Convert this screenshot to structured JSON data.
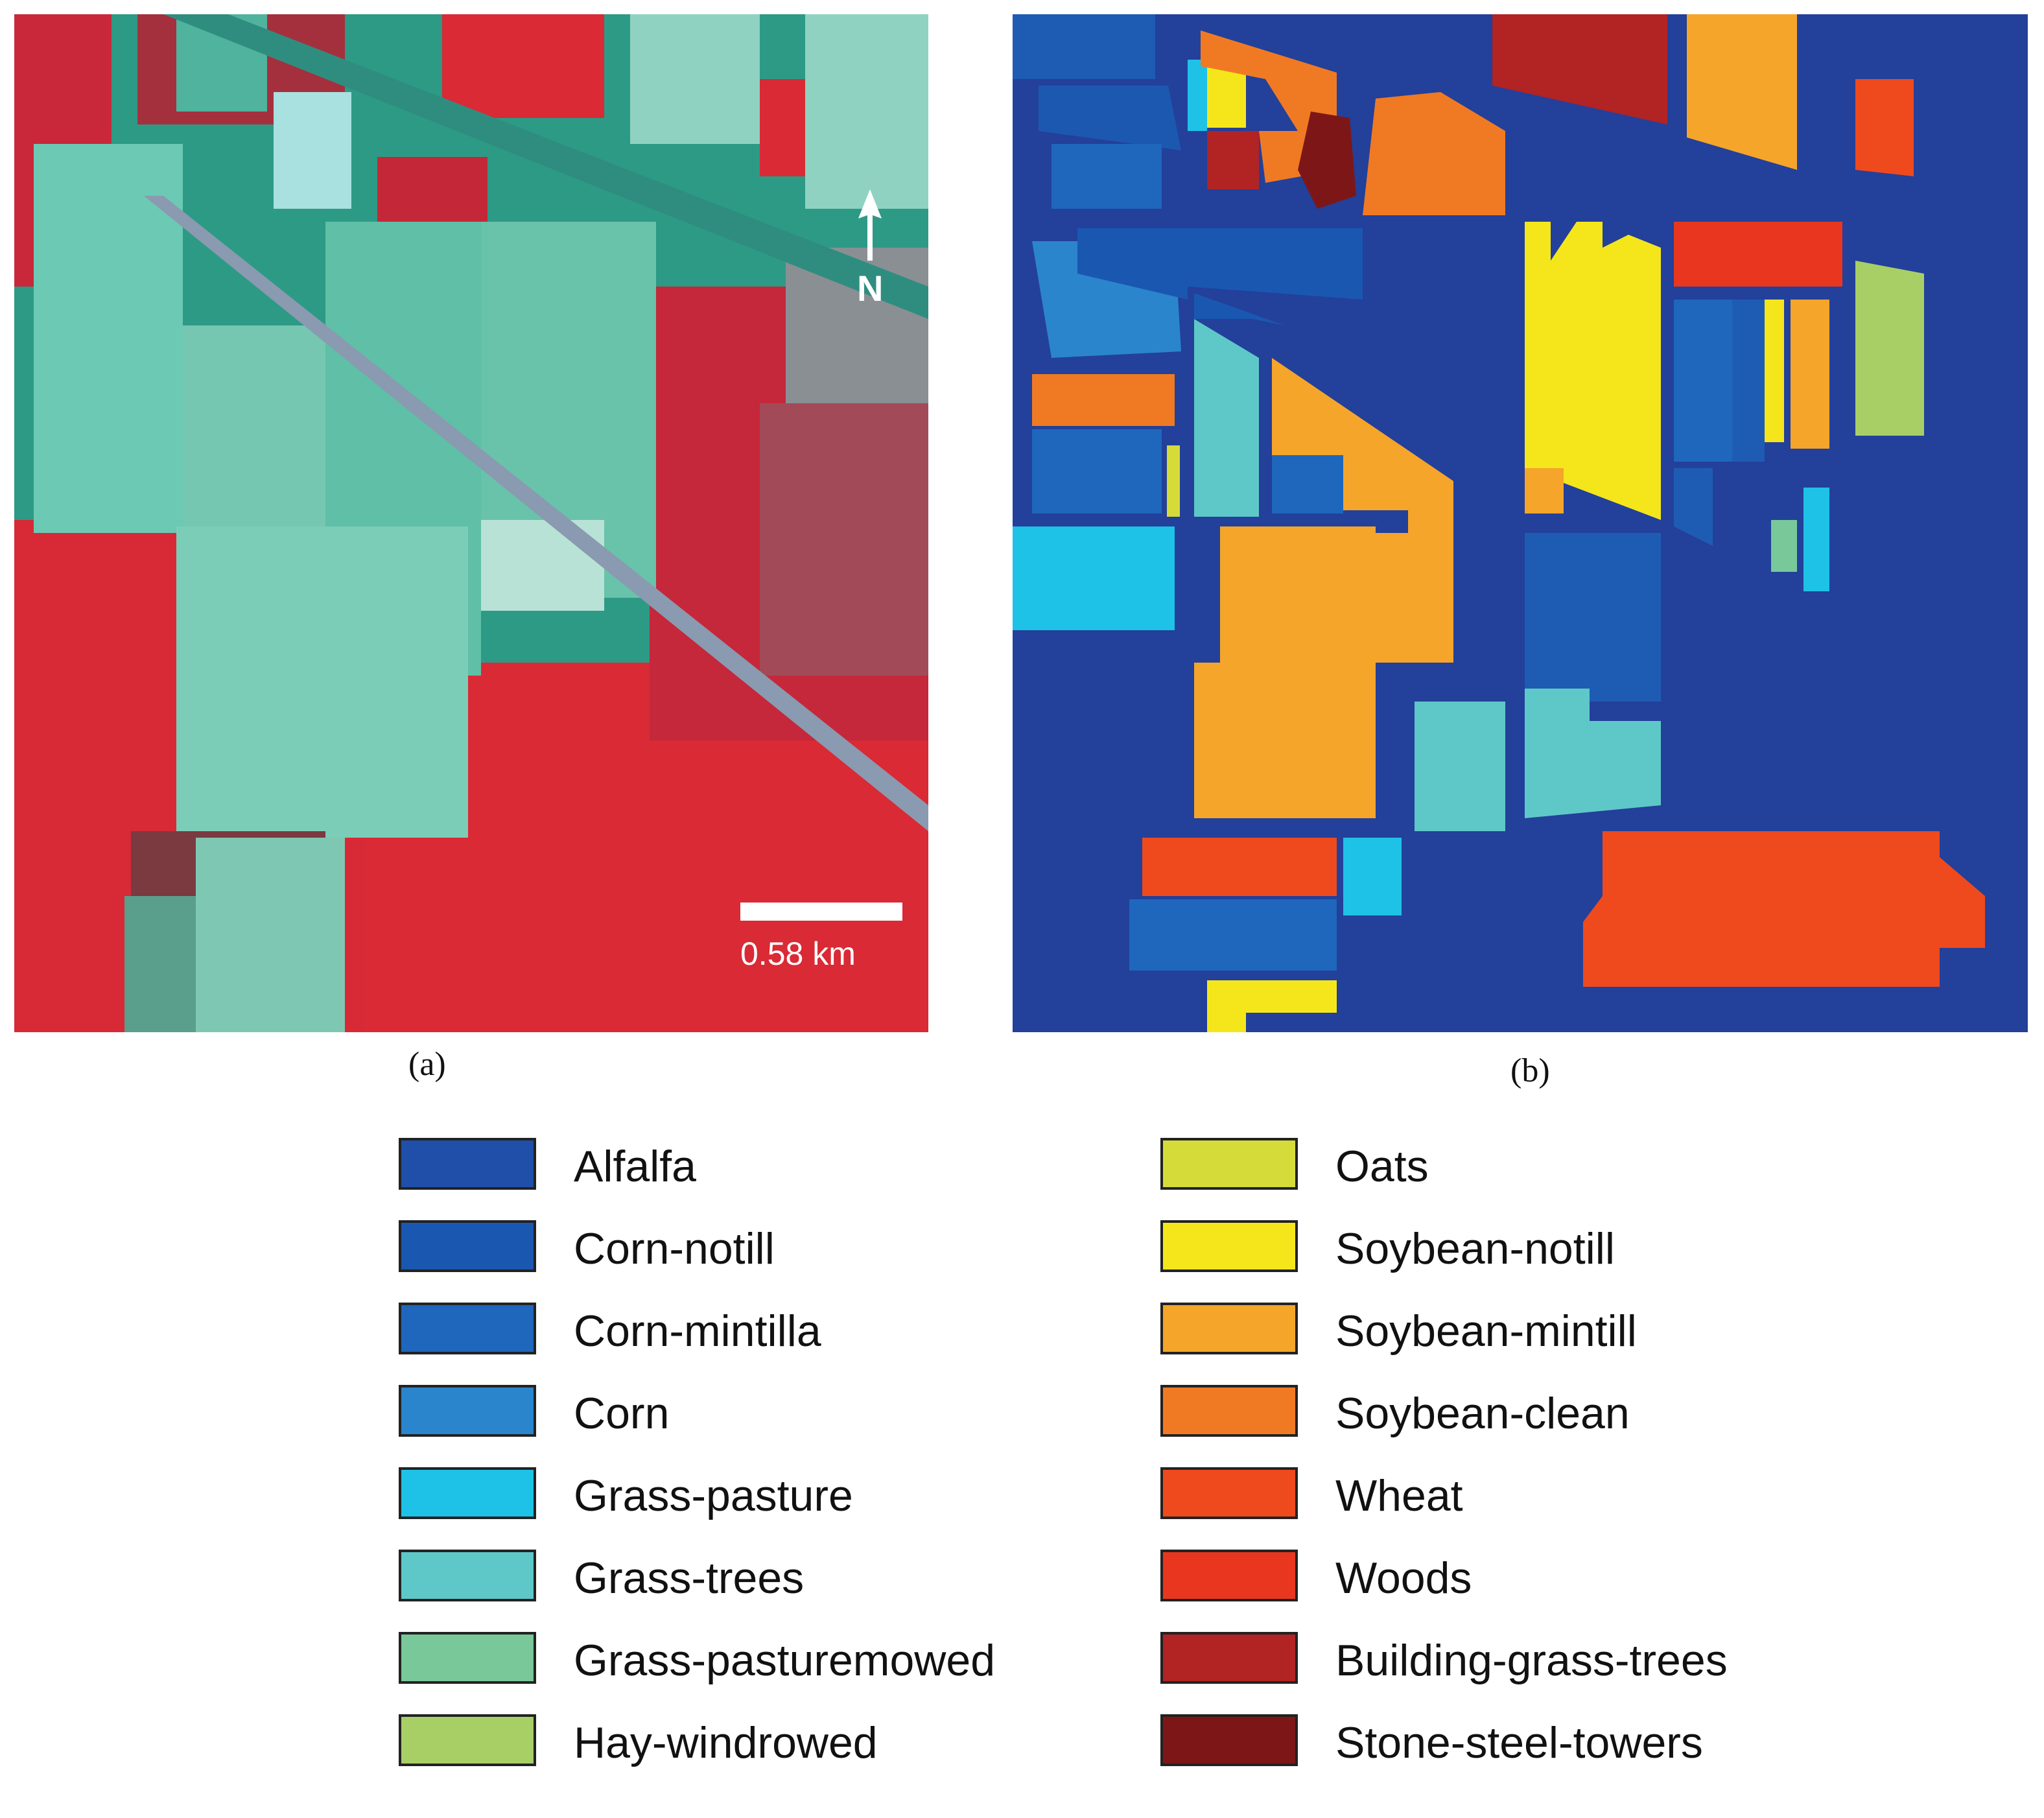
{
  "panels": {
    "a": {
      "caption": "(a)",
      "scale_bar_label": "0.58 km",
      "north_label": "N"
    },
    "b": {
      "caption": "(b)"
    }
  },
  "legend": {
    "left": [
      {
        "label": "Alfalfa",
        "color": "#1f4fa8"
      },
      {
        "label": "Corn-notill",
        "color": "#1a57b0"
      },
      {
        "label": "Corn-mintilla",
        "color": "#1e67bc"
      },
      {
        "label": "Corn",
        "color": "#2a85cc"
      },
      {
        "label": "Grass-pasture",
        "color": "#1ec2e6"
      },
      {
        "label": "Grass-trees",
        "color": "#5ec8c8"
      },
      {
        "label": "Grass-pasturemowed",
        "color": "#78c89a"
      },
      {
        "label": "Hay-windrowed",
        "color": "#a7cf66"
      }
    ],
    "right": [
      {
        "label": "Oats",
        "color": "#d5dc3a"
      },
      {
        "label": "Soybean-notill",
        "color": "#f5e61c"
      },
      {
        "label": "Soybean-mintill",
        "color": "#f5a52a"
      },
      {
        "label": "Soybean-clean",
        "color": "#f07a23"
      },
      {
        "label": "Wheat",
        "color": "#ee4a1e"
      },
      {
        "label": "Woods",
        "color": "#e8371e"
      },
      {
        "label": "Building-grass-trees",
        "color": "#b22323"
      },
      {
        "label": "Stone-steel-towers",
        "color": "#7d1717"
      }
    ]
  },
  "colors": {
    "background_map": "#23409a",
    "false_color_red": "#d92a35",
    "false_color_teal": "#4ab8a6"
  }
}
